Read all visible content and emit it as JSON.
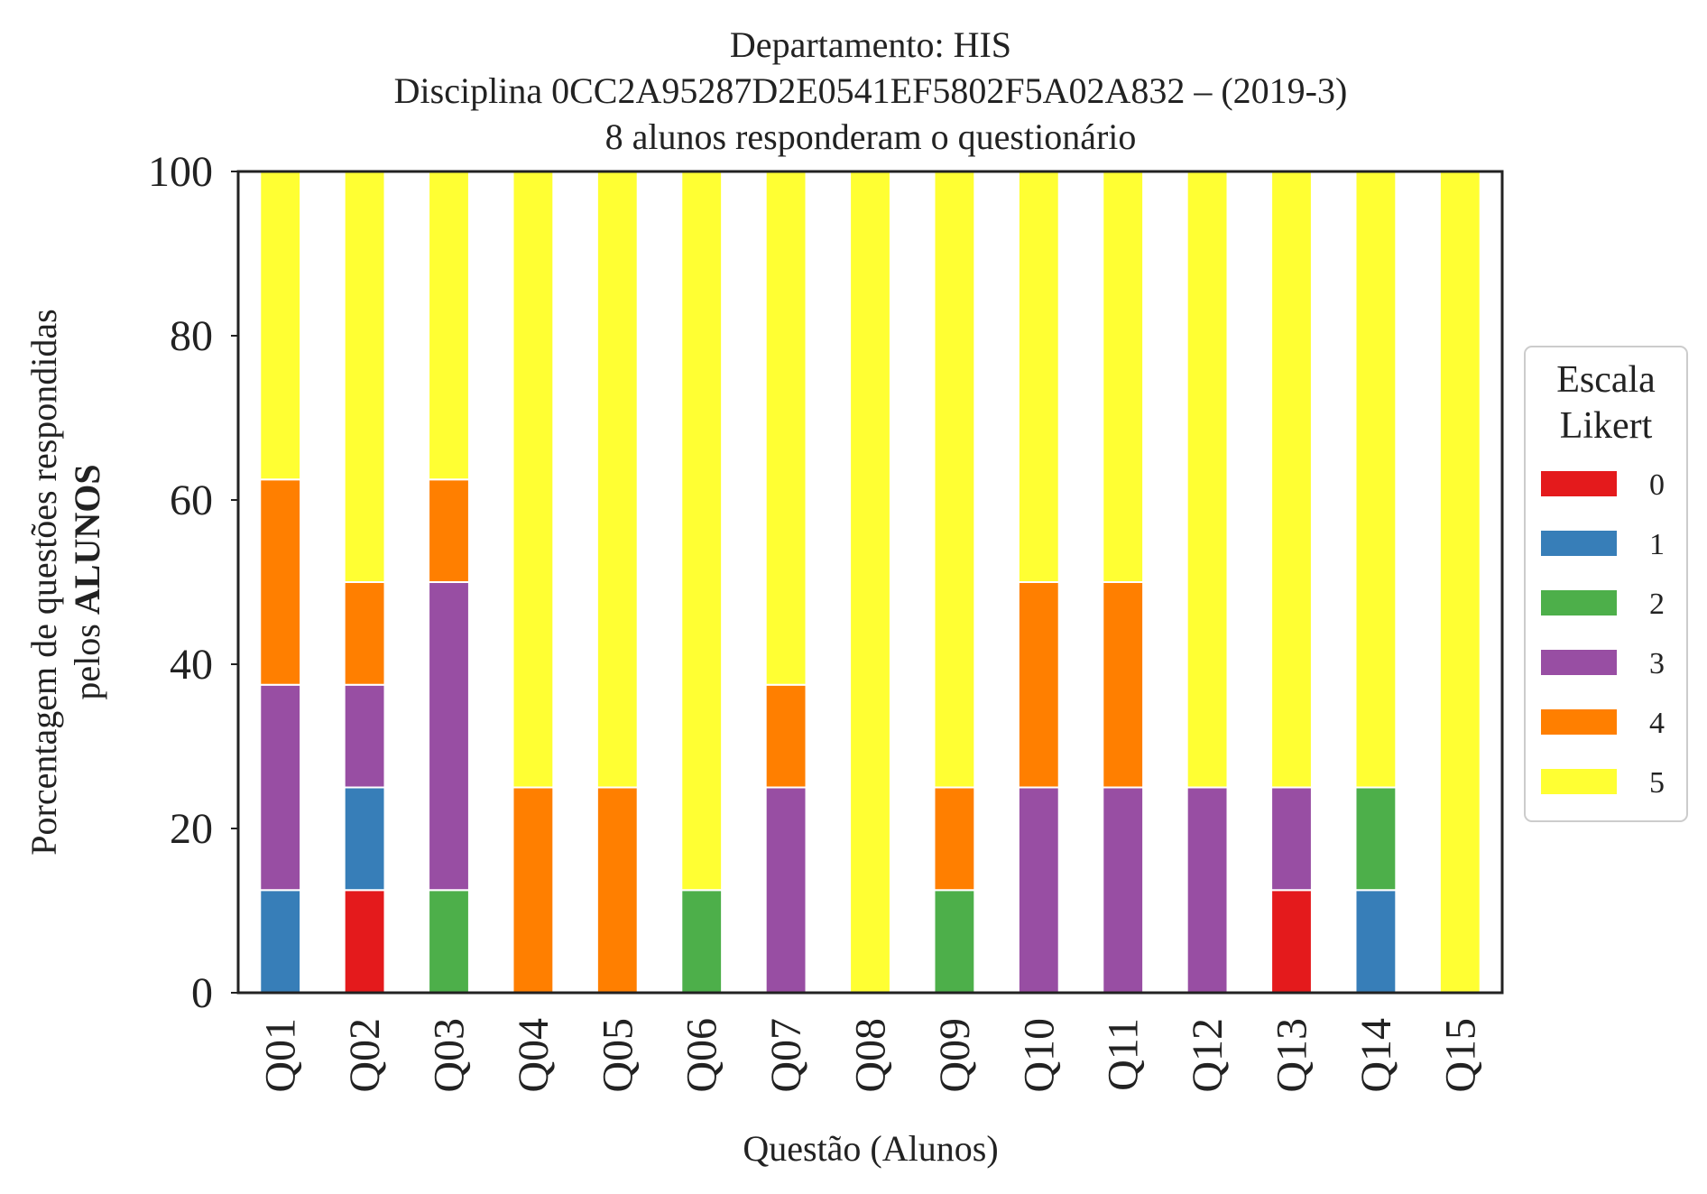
{
  "chart_data": {
    "type": "bar",
    "stacked": true,
    "title_lines": [
      "Departamento: HIS",
      "Disciplina 0CC2A95287D2E0541EF5802F5A02A832 – (2019-3)",
      "8 alunos responderam o questionário"
    ],
    "xlabel": "Questão (Alunos)",
    "ylabel_line1": "Porcentagem de questões respondidas",
    "ylabel_line2_prefix": "pelos ",
    "ylabel_line2_bold": "ALUNOS",
    "ylim": [
      0,
      100
    ],
    "yticks": [
      "0",
      "20",
      "40",
      "60",
      "80",
      "100"
    ],
    "categories": [
      "Q01",
      "Q02",
      "Q03",
      "Q04",
      "Q05",
      "Q06",
      "Q07",
      "Q08",
      "Q09",
      "Q10",
      "Q11",
      "Q12",
      "Q13",
      "Q14",
      "Q15"
    ],
    "legend": {
      "title_line1": "Escala",
      "title_line2": "Likert",
      "placement": "center-right, outside"
    },
    "series": [
      {
        "name": "0",
        "color": "#e41a1c",
        "values": [
          0,
          12.5,
          0,
          0,
          0,
          0,
          0,
          0,
          0,
          0,
          0,
          0,
          12.5,
          0,
          0
        ]
      },
      {
        "name": "1",
        "color": "#377eb8",
        "values": [
          12.5,
          12.5,
          0,
          0,
          0,
          0,
          0,
          0,
          0,
          0,
          0,
          0,
          0,
          12.5,
          0
        ]
      },
      {
        "name": "2",
        "color": "#4daf4a",
        "values": [
          0,
          0,
          12.5,
          0,
          0,
          12.5,
          0,
          0,
          12.5,
          0,
          0,
          0,
          0,
          12.5,
          0
        ]
      },
      {
        "name": "3",
        "color": "#984ea3",
        "values": [
          25,
          12.5,
          37.5,
          0,
          0,
          0,
          25,
          0,
          0,
          25,
          25,
          25,
          12.5,
          0,
          0
        ]
      },
      {
        "name": "4",
        "color": "#ff7f00",
        "values": [
          25,
          12.5,
          12.5,
          25,
          25,
          0,
          12.5,
          0,
          12.5,
          25,
          25,
          0,
          0,
          0,
          0
        ]
      },
      {
        "name": "5",
        "color": "#ffff33",
        "values": [
          37.5,
          50,
          37.5,
          75,
          75,
          87.5,
          62.5,
          100,
          75,
          50,
          50,
          75,
          75,
          75,
          100
        ]
      }
    ],
    "grid": false
  }
}
